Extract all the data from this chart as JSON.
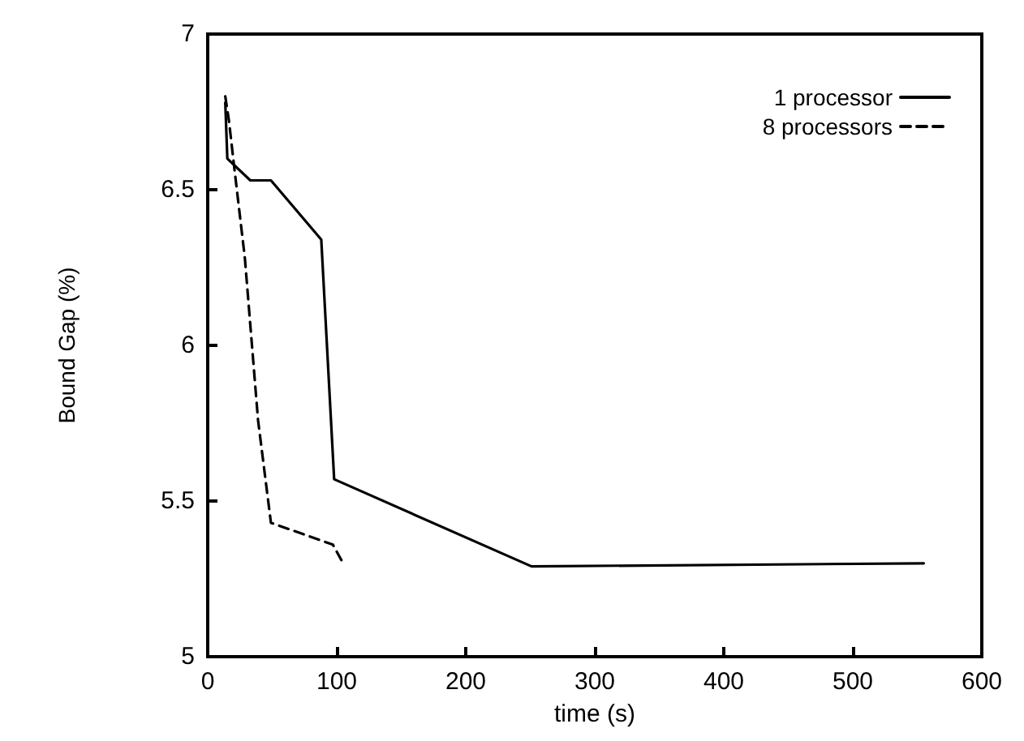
{
  "chart_data": {
    "type": "line",
    "xlabel": "time (s)",
    "ylabel": "Bound Gap (%)",
    "xlim": [
      0,
      600
    ],
    "xticks": [
      0,
      100,
      200,
      300,
      400,
      500,
      600
    ],
    "ylim": [
      5,
      7
    ],
    "yticks": [
      5,
      5.5,
      6,
      6.5,
      7
    ],
    "grid": false,
    "legend": "top right",
    "series": [
      {
        "name": "1 processor",
        "color": "#000000",
        "line_style": "solid",
        "x": [
          13.6,
          15.2,
          33,
          49,
          88,
          98,
          251,
          555
        ],
        "values": [
          6.78,
          6.6,
          6.53,
          6.53,
          6.34,
          5.57,
          5.29,
          5.3
        ]
      },
      {
        "name": "8 processors",
        "color": "#000000",
        "line_style": "dashed",
        "x": [
          13.6,
          16.5,
          20.6,
          28.8,
          39,
          49,
          97,
          105
        ],
        "values": [
          6.8,
          6.72,
          6.57,
          6.28,
          5.76,
          5.43,
          5.36,
          5.3
        ]
      }
    ]
  }
}
